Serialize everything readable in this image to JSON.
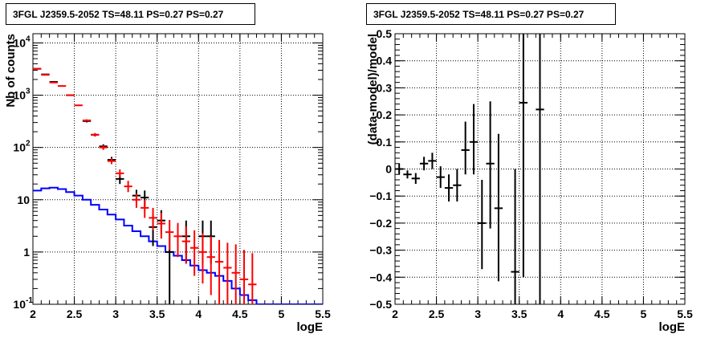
{
  "colors": {
    "data": "#000000",
    "model": "#ff0000",
    "background": "#0000ff",
    "grid": "#000000"
  },
  "chart_data": [
    {
      "type": "line",
      "title": "3FGL J2359.5-2052 TS=48.11 PS=0.27 PS=0.27",
      "xlabel": "logE",
      "ylabel": "Nb of counts",
      "xlim": [
        2,
        5.5
      ],
      "ylim": [
        0.1,
        15000
      ],
      "yscale": "log",
      "grid": true,
      "xticks": [
        "2",
        "2.5",
        "3",
        "3.5",
        "4",
        "4.5",
        "5",
        "5.5"
      ],
      "yticks": [
        {
          "value": 0.1,
          "label": "10",
          "exp": "-1"
        },
        {
          "value": 1,
          "label": "1",
          "exp": ""
        },
        {
          "value": 10,
          "label": "10",
          "exp": ""
        },
        {
          "value": 100,
          "label": "10",
          "exp": "2"
        },
        {
          "value": 1000,
          "label": "10",
          "exp": "3"
        },
        {
          "value": 10000,
          "label": "10",
          "exp": "4"
        }
      ],
      "series": [
        {
          "role": "data",
          "style": "points",
          "points": [
            {
              "x": 2.05,
              "y": 3200,
              "ylo": 3140,
              "yhi": 3260
            },
            {
              "x": 2.15,
              "y": 2500,
              "ylo": 2450,
              "yhi": 2550
            },
            {
              "x": 2.25,
              "y": 1800,
              "ylo": 1760,
              "yhi": 1840
            },
            {
              "x": 2.45,
              "y": 1000,
              "ylo": 970,
              "yhi": 1030
            },
            {
              "x": 2.65,
              "y": 320,
              "ylo": 302,
              "yhi": 338
            },
            {
              "x": 2.75,
              "y": 175,
              "ylo": 162,
              "yhi": 188
            },
            {
              "x": 2.85,
              "y": 105,
              "ylo": 95,
              "yhi": 115
            },
            {
              "x": 2.95,
              "y": 58,
              "ylo": 50,
              "yhi": 66
            },
            {
              "x": 3.05,
              "y": 25,
              "ylo": 20,
              "yhi": 30
            },
            {
              "x": 3.25,
              "y": 12,
              "ylo": 9,
              "yhi": 15.5
            },
            {
              "x": 3.35,
              "y": 11,
              "ylo": 7.5,
              "yhi": 15
            },
            {
              "x": 3.45,
              "y": 3,
              "ylo": 1.3,
              "yhi": 5.2
            },
            {
              "x": 3.55,
              "y": 4,
              "ylo": 2.2,
              "yhi": 6.3
            },
            {
              "x": 3.65,
              "y": 1,
              "ylo": 0.1,
              "yhi": 2.2
            },
            {
              "x": 3.85,
              "y": 2,
              "ylo": 0.6,
              "yhi": 4
            },
            {
              "x": 4.05,
              "y": 2,
              "ylo": 0.6,
              "yhi": 4
            },
            {
              "x": 4.15,
              "y": 2,
              "ylo": 0.6,
              "yhi": 4
            }
          ]
        },
        {
          "role": "model",
          "style": "points",
          "points": [
            {
              "x": 2.05,
              "y": 3200,
              "ylo": 3200,
              "yhi": 3200
            },
            {
              "x": 2.15,
              "y": 2450,
              "ylo": 2450,
              "yhi": 2450
            },
            {
              "x": 2.25,
              "y": 1750,
              "ylo": 1750,
              "yhi": 1750
            },
            {
              "x": 2.35,
              "y": 1500,
              "ylo": 1500,
              "yhi": 1500
            },
            {
              "x": 2.45,
              "y": 1000,
              "ylo": 1000,
              "yhi": 1000
            },
            {
              "x": 2.55,
              "y": 640,
              "ylo": 620,
              "yhi": 660
            },
            {
              "x": 2.65,
              "y": 330,
              "ylo": 315,
              "yhi": 345
            },
            {
              "x": 2.75,
              "y": 175,
              "ylo": 163,
              "yhi": 187
            },
            {
              "x": 2.85,
              "y": 100,
              "ylo": 90,
              "yhi": 110
            },
            {
              "x": 2.95,
              "y": 55,
              "ylo": 48,
              "yhi": 62
            },
            {
              "x": 3.05,
              "y": 32,
              "ylo": 27,
              "yhi": 38
            },
            {
              "x": 3.15,
              "y": 18,
              "ylo": 14,
              "yhi": 23
            },
            {
              "x": 3.25,
              "y": 10,
              "ylo": 7,
              "yhi": 13
            },
            {
              "x": 3.35,
              "y": 7,
              "ylo": 4.5,
              "yhi": 10
            },
            {
              "x": 3.45,
              "y": 4.5,
              "ylo": 2.6,
              "yhi": 7
            },
            {
              "x": 3.55,
              "y": 3.5,
              "ylo": 1.8,
              "yhi": 5.6
            },
            {
              "x": 3.65,
              "y": 2.4,
              "ylo": 1.1,
              "yhi": 4.1
            },
            {
              "x": 3.75,
              "y": 2.0,
              "ylo": 0.8,
              "yhi": 3.6
            },
            {
              "x": 3.85,
              "y": 1.6,
              "ylo": 0.6,
              "yhi": 3.1
            },
            {
              "x": 3.95,
              "y": 1.2,
              "ylo": 0.35,
              "yhi": 2.6
            },
            {
              "x": 4.05,
              "y": 1.0,
              "ylo": 0.25,
              "yhi": 2.3
            },
            {
              "x": 4.15,
              "y": 0.8,
              "ylo": 0.15,
              "yhi": 2.0
            },
            {
              "x": 4.25,
              "y": 0.65,
              "ylo": 0.1,
              "yhi": 1.7
            },
            {
              "x": 4.35,
              "y": 0.5,
              "ylo": 0.1,
              "yhi": 1.5
            },
            {
              "x": 4.45,
              "y": 0.4,
              "ylo": 0.1,
              "yhi": 1.4
            },
            {
              "x": 4.55,
              "y": 0.3,
              "ylo": 0.1,
              "yhi": 1.1
            },
            {
              "x": 4.65,
              "y": 0.24,
              "ylo": 0.1,
              "yhi": 0.95
            }
          ]
        },
        {
          "role": "background",
          "style": "step",
          "bins": [
            2.0,
            2.1,
            2.2,
            2.3,
            2.4,
            2.5,
            2.6,
            2.7,
            2.8,
            2.9,
            3.0,
            3.1,
            3.2,
            3.3,
            3.4,
            3.5,
            3.6,
            3.7,
            3.8,
            3.9,
            4.0,
            4.1,
            4.2,
            4.3,
            4.4,
            4.5,
            4.6,
            4.7,
            4.8,
            4.9,
            5.0,
            5.1,
            5.2,
            5.3,
            5.4,
            5.5
          ],
          "values": [
            15,
            16.5,
            17,
            16,
            14,
            12,
            10,
            8,
            6.5,
            5.2,
            4.2,
            3.2,
            2.5,
            2.0,
            1.6,
            1.3,
            1.0,
            0.85,
            0.7,
            0.55,
            0.45,
            0.4,
            0.35,
            0.28,
            0.2,
            0.15,
            0.12,
            0.1,
            0.1,
            0.1,
            0.1,
            0.1,
            0.1,
            0.1,
            0.1
          ]
        }
      ]
    },
    {
      "type": "scatter",
      "title": "3FGL J2359.5-2052 TS=48.11 PS=0.27 PS=0.27",
      "xlabel": "logE",
      "ylabel": "(data-model)/model",
      "xlim": [
        2,
        5.5
      ],
      "ylim": [
        -0.5,
        0.5
      ],
      "yscale": "linear",
      "grid": true,
      "xticks": [
        "2",
        "2.5",
        "3",
        "3.5",
        "4",
        "4.5",
        "5",
        "5.5"
      ],
      "yticks": [
        "−0.5",
        "−0.4",
        "−0.3",
        "−0.2",
        "−0.1",
        "0",
        "0.1",
        "0.2",
        "0.3",
        "0.4",
        "0.5"
      ],
      "points": [
        {
          "x": 2.05,
          "y": 0.0,
          "ylo": -0.02,
          "yhi": 0.02
        },
        {
          "x": 2.15,
          "y": -0.02,
          "ylo": -0.035,
          "yhi": -0.005
        },
        {
          "x": 2.25,
          "y": -0.035,
          "ylo": -0.055,
          "yhi": -0.015
        },
        {
          "x": 2.35,
          "y": 0.02,
          "ylo": -0.005,
          "yhi": 0.045
        },
        {
          "x": 2.45,
          "y": 0.03,
          "ylo": 0.0,
          "yhi": 0.06
        },
        {
          "x": 2.55,
          "y": -0.03,
          "ylo": -0.07,
          "yhi": 0.01
        },
        {
          "x": 2.65,
          "y": -0.07,
          "ylo": -0.12,
          "yhi": -0.02
        },
        {
          "x": 2.75,
          "y": -0.06,
          "ylo": -0.12,
          "yhi": 0.0
        },
        {
          "x": 2.85,
          "y": 0.07,
          "ylo": -0.02,
          "yhi": 0.175
        },
        {
          "x": 2.95,
          "y": 0.1,
          "ylo": -0.02,
          "yhi": 0.24
        },
        {
          "x": 3.05,
          "y": -0.2,
          "ylo": -0.37,
          "yhi": -0.04
        },
        {
          "x": 3.15,
          "y": 0.02,
          "ylo": -0.22,
          "yhi": 0.25
        },
        {
          "x": 3.25,
          "y": -0.145,
          "ylo": -0.415,
          "yhi": 0.13
        },
        {
          "x": 3.45,
          "y": -0.38,
          "ylo": -0.5,
          "yhi": 0.0
        },
        {
          "x": 3.55,
          "y": 0.245,
          "ylo": -0.4,
          "yhi": 0.5
        },
        {
          "x": 3.75,
          "y": 0.22,
          "ylo": -0.5,
          "yhi": 0.5
        }
      ]
    }
  ]
}
